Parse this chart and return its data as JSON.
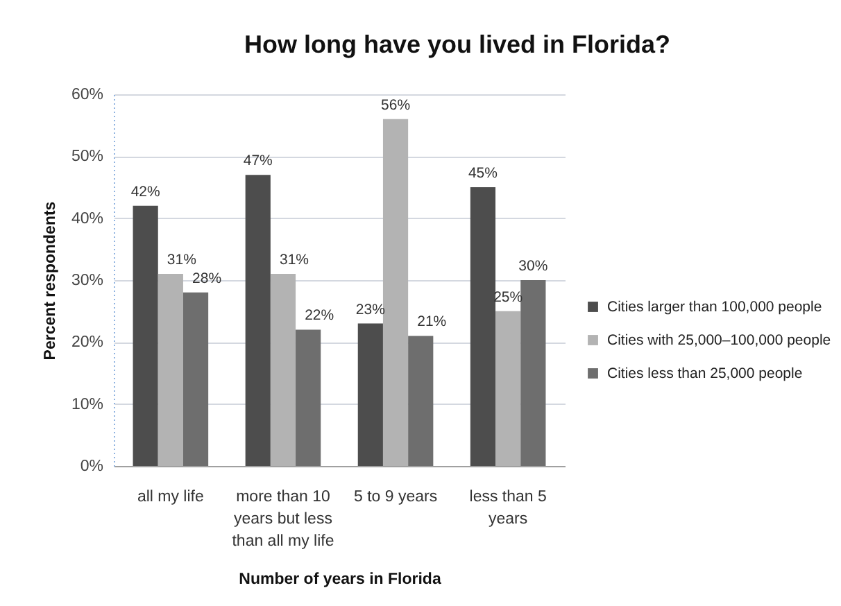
{
  "chart_data": {
    "type": "bar",
    "title": "How long have you lived in Florida?",
    "xlabel": "Number of years in Florida",
    "ylabel": "Percent respondents",
    "categories": [
      "all my life",
      "more than 10 years but less than all my life",
      "5 to 9 years",
      "less than 5 years"
    ],
    "series": [
      {
        "name": "Cities larger than 100,000 people",
        "color": "#4d4d4d",
        "values": [
          42,
          47,
          23,
          45
        ],
        "value_labels": [
          "42%",
          "47%",
          "23%",
          "45%"
        ]
      },
      {
        "name": "Cities with 25,000–100,000 people",
        "color": "#b3b3b3",
        "values": [
          31,
          31,
          56,
          25
        ],
        "value_labels": [
          "31%",
          "31%",
          "56%",
          "25%"
        ]
      },
      {
        "name": "Cities less than 25,000 people",
        "color": "#6e6e6e",
        "values": [
          28,
          22,
          21,
          30
        ],
        "value_labels": [
          "28%",
          "22%",
          "21%",
          "30%"
        ]
      }
    ],
    "ylim": [
      0,
      60
    ],
    "yticks": [
      {
        "value": 0,
        "label": "0%"
      },
      {
        "value": 10,
        "label": "10%"
      },
      {
        "value": 20,
        "label": "20%"
      },
      {
        "value": 30,
        "label": "30%"
      },
      {
        "value": 40,
        "label": "40%"
      },
      {
        "value": 50,
        "label": "50%"
      },
      {
        "value": 60,
        "label": "60%"
      }
    ],
    "grid": "y",
    "legend": "right"
  }
}
